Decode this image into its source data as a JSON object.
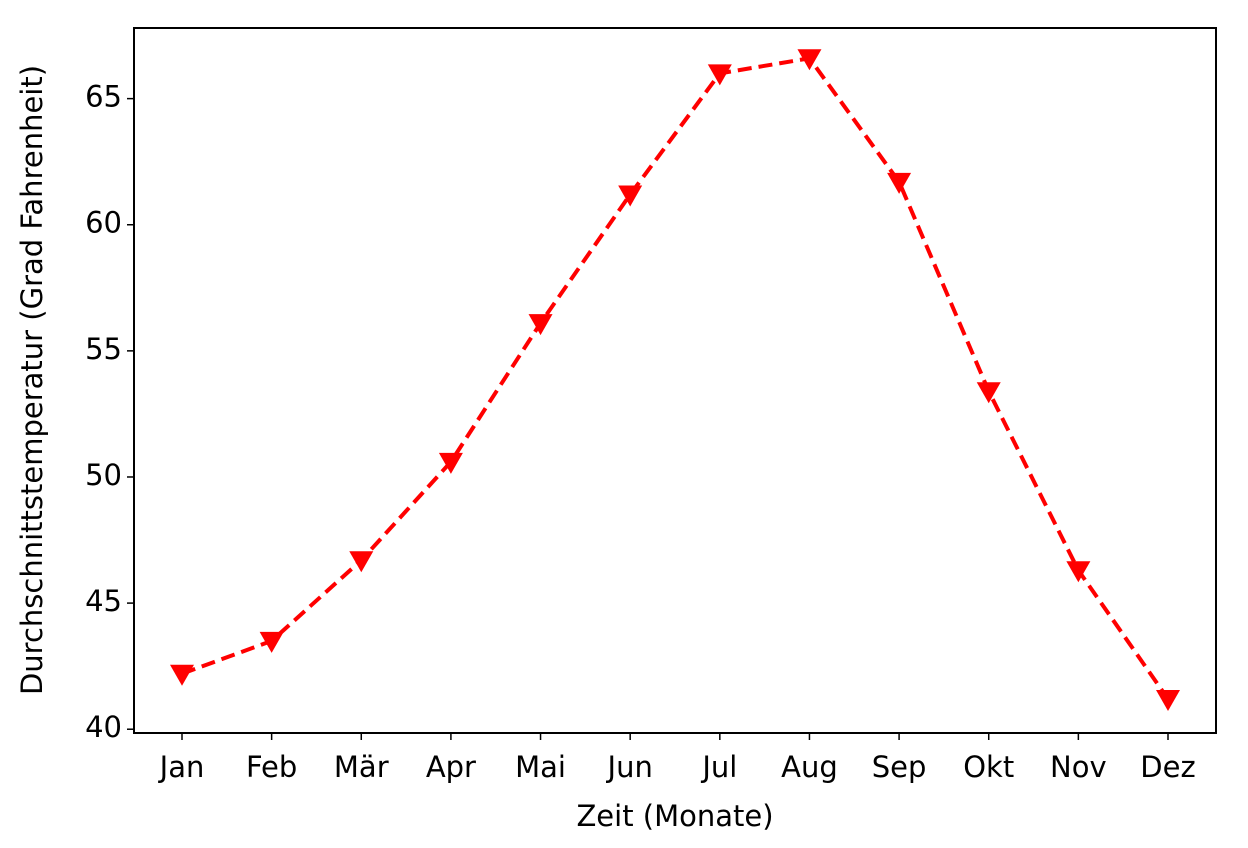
{
  "chart_data": {
    "type": "line",
    "x_label": "Zeit (Monate)",
    "y_label": "Durchschnittstemperatur (Grad Fahrenheit)",
    "categories": [
      "Jan",
      "Feb",
      "Mär",
      "Apr",
      "Mai",
      "Jun",
      "Jul",
      "Aug",
      "Sep",
      "Okt",
      "Nov",
      "Dez"
    ],
    "series": [
      {
        "color": "#ff0000",
        "values": [
          42.2,
          43.5,
          46.7,
          50.6,
          56.1,
          61.2,
          66.0,
          66.6,
          61.7,
          53.4,
          46.3,
          41.2
        ]
      }
    ],
    "ylim": [
      39.85,
      67.8
    ],
    "yticks": [
      40,
      45,
      50,
      55,
      60,
      65
    ],
    "grid": false
  }
}
